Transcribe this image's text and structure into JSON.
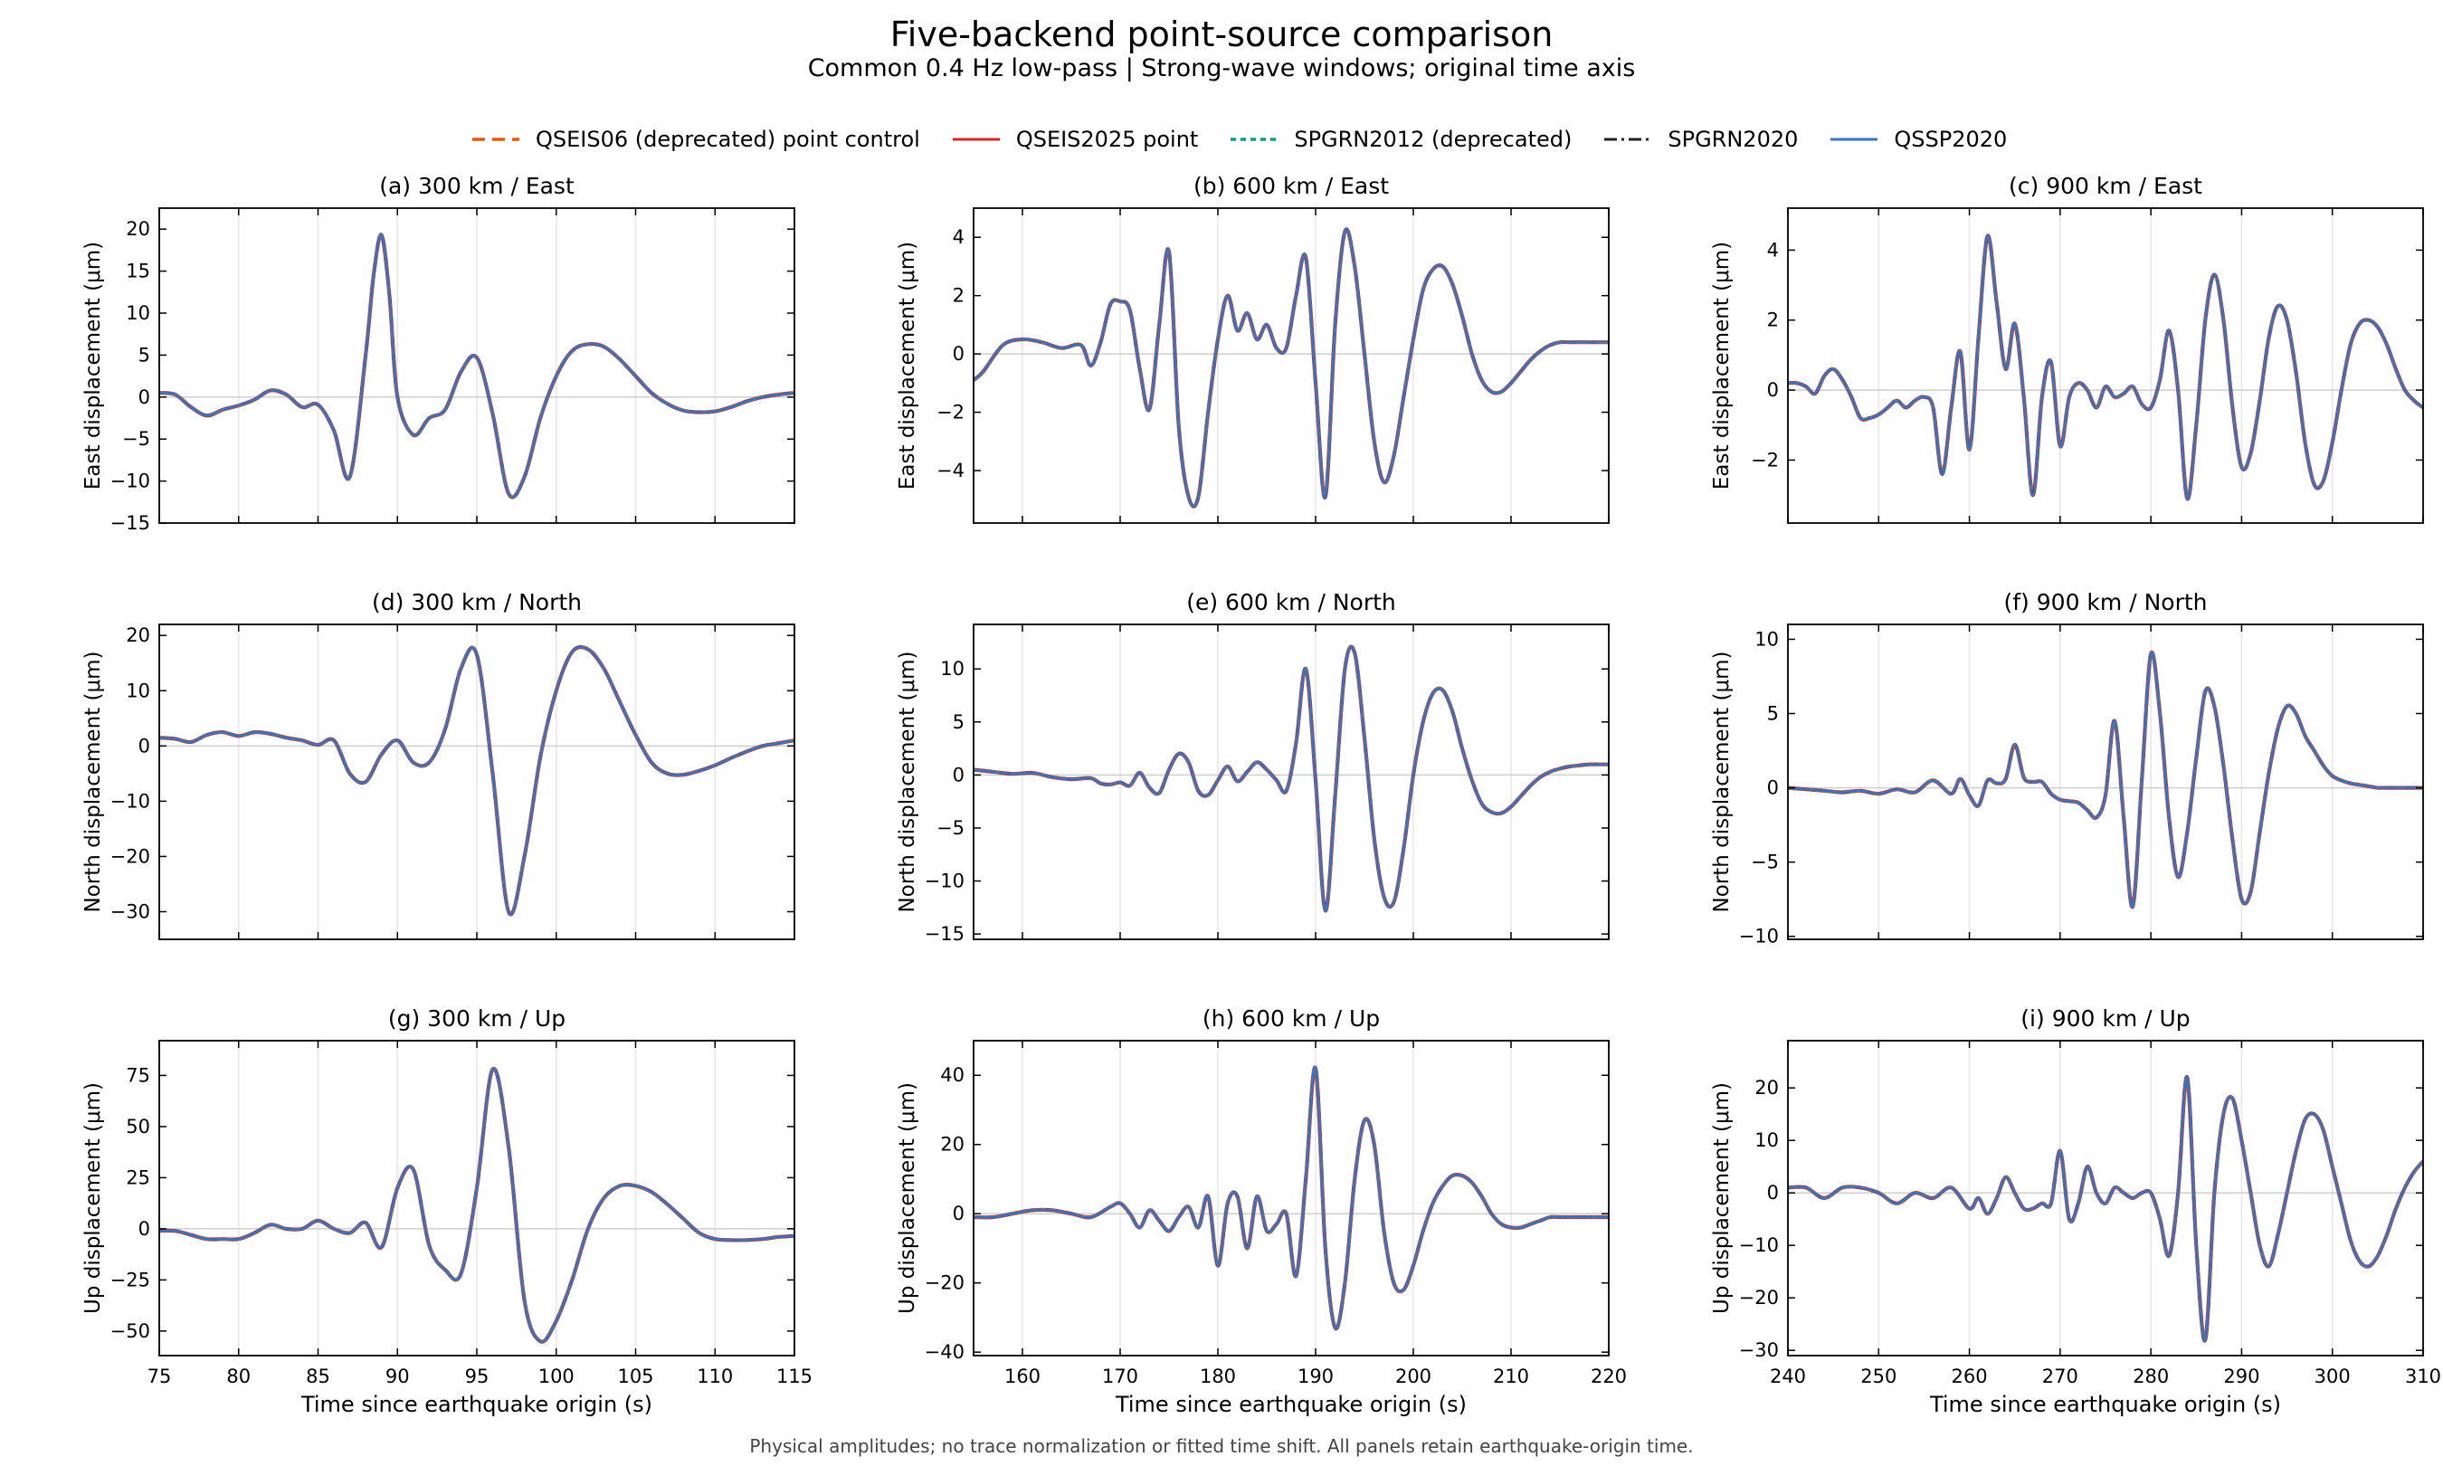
{
  "figure": {
    "title": "Five-backend point-source comparison",
    "subtitle": "Common 0.4 Hz low-pass | Strong-wave windows; original time axis",
    "footnote": "Physical amplitudes; no trace normalization or fitted time shift. All panels retain earthquake-origin time."
  },
  "legend": [
    {
      "label": "QSEIS06 (deprecated) point control",
      "color": "#e8580c",
      "dash": "dashed"
    },
    {
      "label": "QSEIS2025 point",
      "color": "#d62728",
      "dash": "solid"
    },
    {
      "label": "SPGRN2012 (deprecated)",
      "color": "#00a087",
      "dash": "dotted"
    },
    {
      "label": "SPGRN2020",
      "color": "#222222",
      "dash": "dashdot"
    },
    {
      "label": "QSSP2020",
      "color": "#3a73c5",
      "dash": "solid"
    }
  ],
  "colors": {
    "qseis06": "#e8580c",
    "qseis2025": "#d62728",
    "spgrn2012": "#00a087",
    "spgrn2020": "#222222",
    "qssp2020": "#3a73c5"
  },
  "chart_data": [
    {
      "type": "line",
      "title": "(a) 300 km / East",
      "xlabel": "",
      "ylabel": "East displacement (μm)",
      "xlim": [
        75,
        115
      ],
      "ylim": [
        -15,
        22.5
      ],
      "xticks": [
        75,
        80,
        85,
        90,
        95,
        100,
        105,
        110,
        115
      ],
      "yticks": [
        -15,
        -10,
        -5,
        0,
        5,
        10,
        15,
        20
      ],
      "grid": "vertical",
      "series_note": "All five backends overlap",
      "x": [
        75,
        76,
        77,
        78,
        79,
        80,
        81,
        82,
        83,
        84,
        85,
        86,
        87,
        88,
        88.5,
        89,
        89.5,
        90,
        91,
        92,
        93,
        94,
        95,
        96,
        97,
        98,
        99,
        100,
        101,
        102,
        103,
        104,
        105,
        106,
        107,
        108,
        109,
        110,
        111,
        112,
        113,
        114,
        115
      ],
      "y": [
        0.5,
        0.3,
        -1.2,
        -2.2,
        -1.5,
        -1.0,
        -0.3,
        0.8,
        0.3,
        -1.2,
        -0.9,
        -4.0,
        -9.5,
        5.0,
        14.5,
        19.3,
        12.0,
        0.0,
        -4.5,
        -2.5,
        -1.5,
        3.0,
        4.7,
        -2.0,
        -11.5,
        -9.5,
        -2.5,
        2.5,
        5.5,
        6.3,
        6.0,
        4.5,
        2.5,
        0.5,
        -0.8,
        -1.6,
        -1.8,
        -1.7,
        -1.2,
        -0.5,
        0.0,
        0.3,
        0.5
      ]
    },
    {
      "type": "line",
      "title": "(b) 600 km / East",
      "xlabel": "",
      "ylabel": "East displacement (μm)",
      "xlim": [
        155,
        220
      ],
      "ylim": [
        -5.8,
        5.0
      ],
      "xticks": [
        160,
        170,
        180,
        190,
        200,
        210,
        220
      ],
      "yticks": [
        -4,
        -2,
        0,
        2,
        4
      ],
      "grid": "vertical",
      "x": [
        155,
        156,
        158,
        160,
        162,
        164,
        166,
        167,
        168,
        169,
        170,
        171,
        172,
        173,
        174,
        175,
        176,
        177,
        178,
        179,
        180,
        181,
        182,
        183,
        184,
        185,
        186,
        187,
        188,
        189,
        190,
        191,
        192,
        193,
        194,
        195,
        196,
        197,
        198,
        199,
        200,
        201,
        202,
        203,
        204,
        205,
        206,
        207,
        208,
        209,
        210,
        211,
        212,
        213,
        214,
        215,
        216,
        217,
        218,
        219,
        220
      ],
      "y": [
        -0.9,
        -0.6,
        0.3,
        0.5,
        0.4,
        0.2,
        0.3,
        -0.4,
        0.4,
        1.7,
        1.8,
        1.5,
        -0.5,
        -1.9,
        1.0,
        3.5,
        -2.5,
        -4.9,
        -4.9,
        -2.0,
        0.5,
        2.0,
        0.8,
        1.4,
        0.5,
        1.0,
        0.2,
        0.2,
        2.0,
        3.3,
        -1.0,
        -4.9,
        1.0,
        4.2,
        3.0,
        0.0,
        -3.0,
        -4.4,
        -3.5,
        -1.5,
        0.5,
        2.2,
        2.9,
        3.0,
        2.4,
        1.3,
        0.0,
        -0.9,
        -1.3,
        -1.3,
        -1.0,
        -0.6,
        -0.2,
        0.1,
        0.3,
        0.4,
        0.4,
        0.4,
        0.4,
        0.4,
        0.4
      ]
    },
    {
      "type": "line",
      "title": "(c) 900 km / East",
      "xlabel": "",
      "ylabel": "East displacement (μm)",
      "xlim": [
        240,
        310
      ],
      "ylim": [
        -3.8,
        5.2
      ],
      "xticks": [
        240,
        250,
        260,
        270,
        280,
        290,
        300,
        310
      ],
      "yticks": [
        -2,
        0,
        2,
        4
      ],
      "grid": "vertical",
      "x": [
        240,
        241,
        242,
        243,
        244,
        245,
        246,
        247,
        248,
        249,
        250,
        251,
        252,
        253,
        254,
        255,
        256,
        257,
        258,
        259,
        260,
        261,
        262,
        263,
        264,
        265,
        266,
        267,
        268,
        269,
        270,
        271,
        272,
        273,
        274,
        275,
        276,
        277,
        278,
        279,
        280,
        281,
        282,
        283,
        284,
        285,
        286,
        287,
        288,
        289,
        290,
        291,
        292,
        293,
        294,
        295,
        296,
        297,
        298,
        299,
        300,
        301,
        302,
        303,
        304,
        305,
        306,
        307,
        308,
        309,
        310
      ],
      "y": [
        0.2,
        0.2,
        0.1,
        -0.1,
        0.4,
        0.6,
        0.3,
        -0.2,
        -0.8,
        -0.8,
        -0.7,
        -0.5,
        -0.3,
        -0.5,
        -0.3,
        -0.2,
        -0.5,
        -2.4,
        -0.5,
        1.1,
        -1.7,
        1.5,
        4.4,
        2.5,
        0.6,
        1.9,
        -0.2,
        -3.0,
        -0.2,
        0.8,
        -1.6,
        -0.2,
        0.2,
        0.0,
        -0.5,
        0.1,
        -0.2,
        -0.1,
        0.1,
        -0.4,
        -0.5,
        0.3,
        1.7,
        0.0,
        -3.1,
        -1.0,
        2.0,
        3.3,
        2.0,
        -0.5,
        -2.2,
        -1.8,
        -0.3,
        1.5,
        2.4,
        2.0,
        0.5,
        -1.5,
        -2.7,
        -2.6,
        -1.5,
        0.0,
        1.3,
        1.9,
        2.0,
        1.8,
        1.3,
        0.6,
        0.0,
        -0.3,
        -0.5
      ]
    },
    {
      "type": "line",
      "title": "(d) 300 km / North",
      "xlabel": "",
      "ylabel": "North displacement (μm)",
      "xlim": [
        75,
        115
      ],
      "ylim": [
        -35,
        22
      ],
      "xticks": [
        75,
        80,
        85,
        90,
        95,
        100,
        105,
        110,
        115
      ],
      "yticks": [
        -30,
        -20,
        -10,
        0,
        10,
        20
      ],
      "grid": "vertical",
      "x": [
        75,
        76,
        77,
        78,
        79,
        80,
        81,
        82,
        83,
        84,
        85,
        86,
        87,
        88,
        89,
        90,
        91,
        92,
        93,
        94,
        95,
        96,
        97,
        98,
        99,
        100,
        101,
        102,
        103,
        104,
        105,
        106,
        107,
        108,
        109,
        110,
        111,
        112,
        113,
        114,
        115
      ],
      "y": [
        1.5,
        1.3,
        0.7,
        2.0,
        2.5,
        1.8,
        2.5,
        2.2,
        1.5,
        1.0,
        0.2,
        1.0,
        -5.0,
        -6.5,
        -1.5,
        1.0,
        -3.0,
        -3.0,
        3.0,
        14.0,
        16.5,
        -5.0,
        -30.0,
        -20.0,
        -2.0,
        10.0,
        17.0,
        17.5,
        14.0,
        8.0,
        2.0,
        -3.0,
        -5.0,
        -5.2,
        -4.5,
        -3.5,
        -2.2,
        -1.0,
        0.0,
        0.5,
        1.0
      ]
    },
    {
      "type": "line",
      "title": "(e) 600 km / North",
      "xlabel": "",
      "ylabel": "North displacement (μm)",
      "xlim": [
        155,
        220
      ],
      "ylim": [
        -15.5,
        14.2
      ],
      "xticks": [
        160,
        170,
        180,
        190,
        200,
        210,
        220
      ],
      "yticks": [
        -15,
        -10,
        -5,
        0,
        5,
        10
      ],
      "grid": "vertical",
      "x": [
        155,
        157,
        159,
        161,
        163,
        165,
        167,
        168,
        169,
        170,
        171,
        172,
        173,
        174,
        175,
        176,
        177,
        178,
        179,
        180,
        181,
        182,
        183,
        184,
        185,
        186,
        187,
        188,
        189,
        190,
        191,
        192,
        193,
        194,
        195,
        196,
        197,
        198,
        199,
        200,
        201,
        202,
        203,
        204,
        205,
        206,
        207,
        208,
        209,
        210,
        211,
        212,
        213,
        214,
        215,
        216,
        217,
        218,
        219,
        220
      ],
      "y": [
        0.5,
        0.3,
        0.1,
        0.2,
        -0.2,
        -0.4,
        -0.3,
        -0.8,
        -0.9,
        -0.7,
        -1.0,
        0.2,
        -1.2,
        -1.7,
        0.5,
        2.0,
        1.2,
        -1.5,
        -1.9,
        -0.5,
        0.8,
        -0.6,
        0.3,
        1.2,
        0.5,
        -0.5,
        -1.5,
        3.0,
        10.0,
        -0.5,
        -12.8,
        -2.0,
        10.0,
        11.5,
        3.5,
        -6.0,
        -11.5,
        -12.0,
        -7.0,
        0.0,
        5.0,
        7.7,
        8.0,
        6.0,
        2.5,
        -0.5,
        -2.7,
        -3.5,
        -3.6,
        -3.0,
        -2.0,
        -1.0,
        -0.2,
        0.3,
        0.6,
        0.8,
        0.9,
        1.0,
        1.0,
        1.0
      ]
    },
    {
      "type": "line",
      "title": "(f) 900 km / North",
      "xlabel": "",
      "ylabel": "North displacement (μm)",
      "xlim": [
        240,
        310
      ],
      "ylim": [
        -10.2,
        11.0
      ],
      "xticks": [
        240,
        250,
        260,
        270,
        280,
        290,
        300,
        310
      ],
      "yticks": [
        -10,
        -5,
        0,
        5,
        10
      ],
      "grid": "vertical",
      "x": [
        240,
        242,
        244,
        246,
        248,
        250,
        252,
        254,
        256,
        258,
        259,
        260,
        261,
        262,
        263,
        264,
        265,
        266,
        267,
        268,
        269,
        270,
        271,
        272,
        273,
        274,
        275,
        276,
        277,
        278,
        279,
        280,
        281,
        282,
        283,
        284,
        285,
        286,
        287,
        288,
        289,
        290,
        291,
        292,
        293,
        294,
        295,
        296,
        297,
        298,
        299,
        300,
        301,
        302,
        303,
        304,
        305,
        306,
        307,
        308,
        309,
        310
      ],
      "y": [
        0.0,
        -0.1,
        -0.2,
        -0.3,
        -0.2,
        -0.4,
        -0.1,
        -0.3,
        0.5,
        -0.4,
        0.6,
        -0.5,
        -1.2,
        0.5,
        0.3,
        0.6,
        2.9,
        0.7,
        0.4,
        0.4,
        -0.4,
        -0.8,
        -0.9,
        -1.0,
        -1.5,
        -2.0,
        -0.5,
        4.5,
        -2.0,
        -8.0,
        0.5,
        9.0,
        5.0,
        -2.0,
        -6.0,
        -3.0,
        2.0,
        6.5,
        5.5,
        1.5,
        -3.5,
        -7.5,
        -7.0,
        -3.0,
        1.0,
        4.0,
        5.5,
        5.0,
        3.5,
        2.5,
        1.5,
        0.8,
        0.5,
        0.3,
        0.2,
        0.1,
        0.0,
        0.0,
        0.0,
        0.0,
        0.0,
        0.0
      ]
    },
    {
      "type": "line",
      "title": "(g) 300 km / Up",
      "xlabel": "Time since earthquake origin (s)",
      "ylabel": "Up displacement (μm)",
      "xlim": [
        75,
        115
      ],
      "ylim": [
        -62,
        92
      ],
      "xticks": [
        75,
        80,
        85,
        90,
        95,
        100,
        105,
        110,
        115
      ],
      "yticks": [
        -50,
        -25,
        0,
        25,
        50,
        75
      ],
      "grid": "vertical",
      "x": [
        75,
        76,
        77,
        78,
        79,
        80,
        81,
        82,
        83,
        84,
        85,
        86,
        87,
        88,
        89,
        90,
        91,
        92,
        93,
        94,
        95,
        96,
        97,
        98,
        99,
        100,
        101,
        102,
        103,
        104,
        105,
        106,
        107,
        108,
        109,
        110,
        111,
        112,
        113,
        114,
        115
      ],
      "y": [
        -1,
        -1,
        -3,
        -5,
        -5,
        -5,
        -2,
        2,
        0,
        0,
        4,
        0,
        -2,
        3,
        -9,
        20,
        29,
        -8,
        -20,
        -22,
        20,
        78,
        40,
        -35,
        -55,
        -45,
        -25,
        0,
        15,
        21,
        21,
        18,
        12,
        5,
        -2,
        -5,
        -5.5,
        -5.5,
        -5,
        -4,
        -3.5
      ]
    },
    {
      "type": "line",
      "title": "(h) 600 km / Up",
      "xlabel": "Time since earthquake origin (s)",
      "ylabel": "Up displacement (μm)",
      "xlim": [
        155,
        220
      ],
      "ylim": [
        -41,
        50
      ],
      "xticks": [
        160,
        170,
        180,
        190,
        200,
        210,
        220
      ],
      "yticks": [
        -40,
        -20,
        0,
        20,
        40
      ],
      "grid": "vertical",
      "x": [
        155,
        157,
        159,
        161,
        163,
        165,
        167,
        169,
        170,
        171,
        172,
        173,
        174,
        175,
        176,
        177,
        178,
        179,
        180,
        181,
        182,
        183,
        184,
        185,
        186,
        187,
        188,
        189,
        190,
        191,
        192,
        193,
        194,
        195,
        196,
        197,
        198,
        199,
        200,
        201,
        202,
        203,
        204,
        205,
        206,
        207,
        208,
        209,
        210,
        211,
        212,
        213,
        214,
        215,
        216,
        217,
        218,
        219,
        220
      ],
      "y": [
        -1,
        -1,
        0,
        1,
        1,
        0,
        -1,
        2,
        3,
        0,
        -4,
        1,
        -2,
        -5,
        -1,
        2,
        -4,
        5,
        -15,
        3,
        5,
        -10,
        5,
        -5,
        -3,
        0,
        -18,
        10,
        42,
        -10,
        -33,
        -20,
        10,
        27,
        20,
        -5,
        -20,
        -22,
        -15,
        -5,
        3,
        8,
        11,
        11,
        9,
        5,
        0,
        -3,
        -4,
        -4,
        -3,
        -2,
        -1,
        -1,
        -1,
        -1,
        -1,
        -1,
        -1
      ]
    },
    {
      "type": "line",
      "title": "(i) 900 km / Up",
      "xlabel": "Time since earthquake origin (s)",
      "ylabel": "Up displacement (μm)",
      "xlim": [
        240,
        310
      ],
      "ylim": [
        -31,
        29
      ],
      "xticks": [
        240,
        250,
        260,
        270,
        280,
        290,
        300,
        310
      ],
      "yticks": [
        -30,
        -20,
        -10,
        0,
        10,
        20
      ],
      "grid": "vertical",
      "x": [
        240,
        242,
        244,
        246,
        248,
        250,
        252,
        254,
        256,
        258,
        260,
        261,
        262,
        263,
        264,
        265,
        266,
        267,
        268,
        269,
        270,
        271,
        272,
        273,
        274,
        275,
        276,
        277,
        278,
        279,
        280,
        281,
        282,
        283,
        284,
        285,
        286,
        287,
        288,
        289,
        290,
        291,
        292,
        293,
        294,
        295,
        296,
        297,
        298,
        299,
        300,
        301,
        302,
        303,
        304,
        305,
        306,
        307,
        308,
        309,
        310
      ],
      "y": [
        1,
        1,
        -1,
        1,
        1,
        0,
        -2,
        0,
        -1,
        1,
        -3,
        -1,
        -4,
        -1,
        3,
        0,
        -3,
        -3,
        -2,
        -2,
        8,
        -5,
        -2,
        5,
        0,
        -2,
        1,
        0,
        -1,
        0,
        0,
        -5,
        -12,
        0,
        22,
        -10,
        -28,
        0,
        15,
        18,
        10,
        0,
        -10,
        -14,
        -8,
        0,
        8,
        14,
        15,
        12,
        5,
        -2,
        -9,
        -13,
        -14,
        -12,
        -8,
        -3,
        1,
        4,
        6
      ]
    }
  ]
}
